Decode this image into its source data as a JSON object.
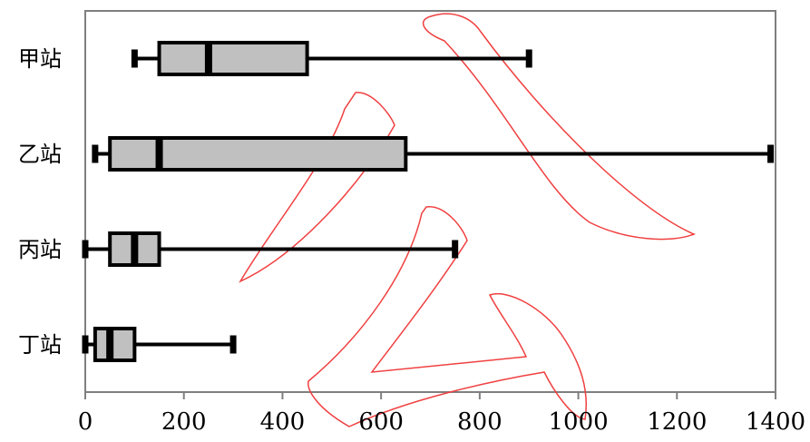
{
  "chart_data": {
    "type": "box",
    "categories": [
      "甲站",
      "乙站",
      "丙站",
      "丁站"
    ],
    "min": [
      100,
      20,
      0,
      0
    ],
    "q1": [
      150,
      50,
      50,
      20
    ],
    "median": [
      250,
      150,
      100,
      50
    ],
    "q3": [
      450,
      650,
      150,
      100
    ],
    "max": [
      900,
      1390,
      750,
      300
    ],
    "color": "#c0c0c0",
    "xlim": [
      0,
      1400
    ],
    "xticks": [
      0,
      200,
      400,
      600,
      800,
      1000,
      1200,
      1400
    ]
  }
}
